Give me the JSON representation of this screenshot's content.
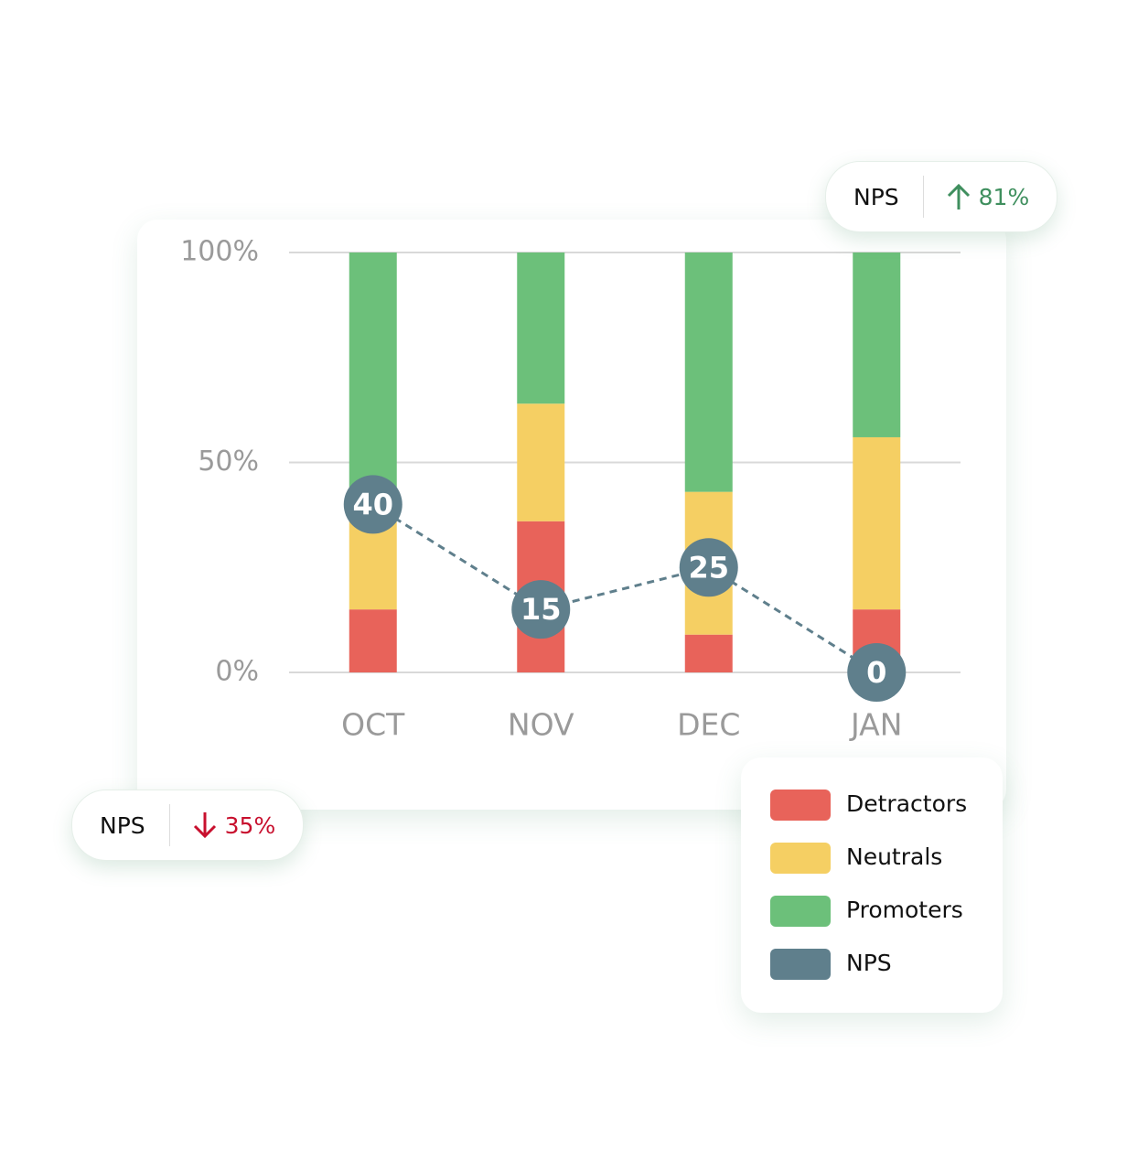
{
  "chart_data": {
    "type": "bar",
    "stacked": true,
    "grid": true,
    "categories": [
      "OCT",
      "NOV",
      "DEC",
      "JAN"
    ],
    "ylim": [
      0,
      100
    ],
    "yticks": [
      {
        "value": 0,
        "label": "0%"
      },
      {
        "value": 50,
        "label": "50%"
      },
      {
        "value": 100,
        "label": "100%"
      }
    ],
    "series": [
      {
        "name": "Detractors",
        "color": "#e8635a",
        "values": [
          15,
          36,
          9,
          15
        ]
      },
      {
        "name": "Neutrals",
        "color": "#f5cf63",
        "values": [
          28,
          28,
          34,
          41
        ]
      },
      {
        "name": "Promoters",
        "color": "#6cc07a",
        "values": [
          57,
          36,
          57,
          44
        ]
      },
      {
        "name": "NPS",
        "type": "line",
        "color": "#5f7f8c",
        "values": [
          40,
          15,
          25,
          0
        ]
      }
    ]
  },
  "badges": [
    {
      "label": "NPS",
      "change": "81%",
      "direction": "up",
      "color": "#3f8f5e"
    },
    {
      "label": "NPS",
      "change": "35%",
      "direction": "down",
      "color": "#c8102e"
    }
  ]
}
